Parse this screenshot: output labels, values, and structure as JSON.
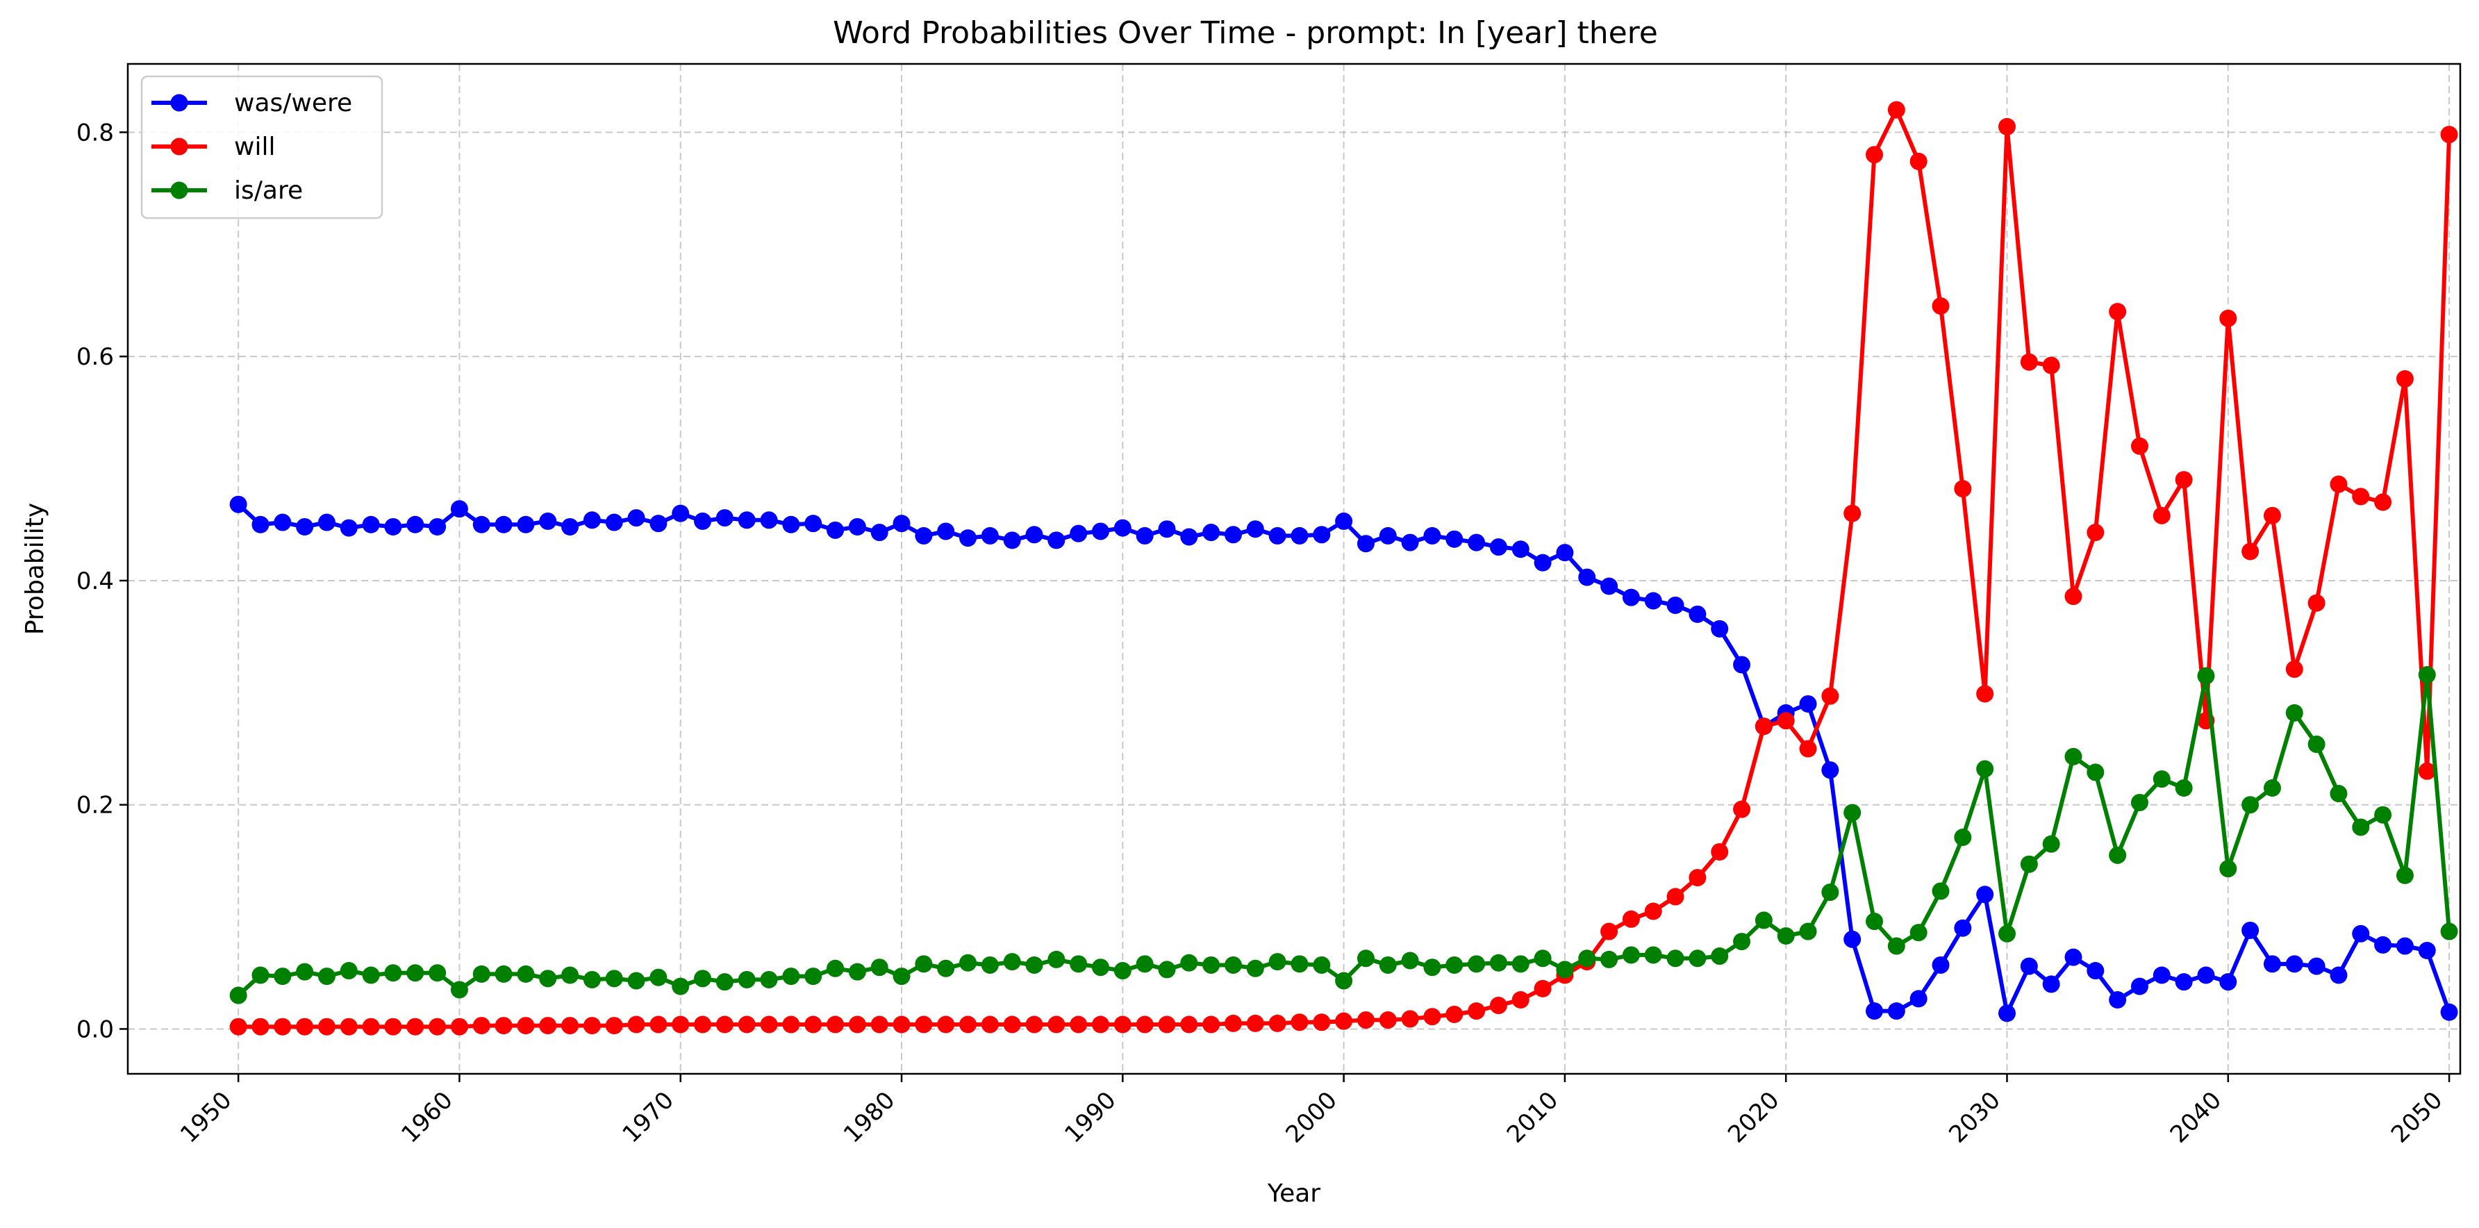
{
  "chart_data": {
    "type": "line",
    "title": "Word Probabilities Over Time - prompt: In [year] there",
    "xlabel": "Year",
    "ylabel": "Probability",
    "xlim": [
      1945,
      2050.5
    ],
    "ylim": [
      -0.04,
      0.861
    ],
    "xticks": [
      1950,
      1960,
      1970,
      1980,
      1990,
      2000,
      2010,
      2020,
      2030,
      2040,
      2050
    ],
    "yticks": [
      0.0,
      0.2,
      0.4,
      0.6,
      0.8
    ],
    "ytick_labels": [
      "0.0",
      "0.2",
      "0.4",
      "0.6",
      "0.8"
    ],
    "grid": true,
    "legend_position": "top-left",
    "x_start": 1950,
    "x_end": 2050,
    "series": [
      {
        "name": "was/were",
        "color": "#0000ff",
        "values": [
          0.468,
          0.45,
          0.452,
          0.448,
          0.452,
          0.447,
          0.45,
          0.448,
          0.45,
          0.448,
          0.464,
          0.45,
          0.45,
          0.45,
          0.453,
          0.448,
          0.454,
          0.452,
          0.456,
          0.451,
          0.46,
          0.453,
          0.456,
          0.454,
          0.454,
          0.45,
          0.451,
          0.445,
          0.448,
          0.443,
          0.451,
          0.44,
          0.444,
          0.438,
          0.44,
          0.436,
          0.441,
          0.436,
          0.442,
          0.444,
          0.447,
          0.44,
          0.446,
          0.439,
          0.443,
          0.441,
          0.446,
          0.44,
          0.44,
          0.441,
          0.453,
          0.433,
          0.44,
          0.434,
          0.44,
          0.437,
          0.434,
          0.43,
          0.428,
          0.416,
          0.425,
          0.403,
          0.395,
          0.385,
          0.382,
          0.378,
          0.37,
          0.357,
          0.325,
          0.27,
          0.282,
          0.29,
          0.231,
          0.08,
          0.016,
          0.016,
          0.027,
          0.057,
          0.09,
          0.12,
          0.014,
          0.056,
          0.04,
          0.064,
          0.052,
          0.026,
          0.038,
          0.048,
          0.042,
          0.048,
          0.042,
          0.088,
          0.058,
          0.058,
          0.056,
          0.048,
          0.085,
          0.075,
          0.074,
          0.07,
          0.015
        ]
      },
      {
        "name": "will",
        "color": "#ff0000",
        "values": [
          0.002,
          0.002,
          0.002,
          0.002,
          0.002,
          0.002,
          0.002,
          0.002,
          0.002,
          0.002,
          0.002,
          0.003,
          0.003,
          0.003,
          0.003,
          0.003,
          0.003,
          0.003,
          0.004,
          0.004,
          0.004,
          0.004,
          0.004,
          0.004,
          0.004,
          0.004,
          0.004,
          0.004,
          0.004,
          0.004,
          0.004,
          0.004,
          0.004,
          0.004,
          0.004,
          0.004,
          0.004,
          0.004,
          0.004,
          0.004,
          0.004,
          0.004,
          0.004,
          0.004,
          0.004,
          0.005,
          0.005,
          0.005,
          0.006,
          0.006,
          0.007,
          0.008,
          0.008,
          0.009,
          0.011,
          0.013,
          0.016,
          0.021,
          0.026,
          0.036,
          0.048,
          0.06,
          0.087,
          0.098,
          0.105,
          0.118,
          0.135,
          0.158,
          0.196,
          0.27,
          0.275,
          0.25,
          0.297,
          0.46,
          0.78,
          0.82,
          0.774,
          0.645,
          0.482,
          0.299,
          0.805,
          0.595,
          0.592,
          0.386,
          0.443,
          0.64,
          0.52,
          0.458,
          0.49,
          0.275,
          0.634,
          0.426,
          0.458,
          0.321,
          0.38,
          0.486,
          0.475,
          0.47,
          0.58,
          0.23,
          0.798
        ]
      },
      {
        "name": "is/are",
        "color": "#008000",
        "values": [
          0.03,
          0.048,
          0.047,
          0.051,
          0.047,
          0.052,
          0.048,
          0.05,
          0.05,
          0.05,
          0.035,
          0.049,
          0.049,
          0.049,
          0.045,
          0.048,
          0.044,
          0.045,
          0.043,
          0.046,
          0.038,
          0.045,
          0.042,
          0.044,
          0.044,
          0.047,
          0.047,
          0.054,
          0.051,
          0.055,
          0.047,
          0.058,
          0.054,
          0.059,
          0.057,
          0.06,
          0.057,
          0.062,
          0.058,
          0.055,
          0.052,
          0.058,
          0.053,
          0.059,
          0.057,
          0.057,
          0.054,
          0.06,
          0.058,
          0.057,
          0.043,
          0.063,
          0.057,
          0.061,
          0.055,
          0.057,
          0.058,
          0.059,
          0.058,
          0.063,
          0.053,
          0.063,
          0.062,
          0.066,
          0.066,
          0.063,
          0.063,
          0.065,
          0.078,
          0.097,
          0.083,
          0.087,
          0.122,
          0.193,
          0.096,
          0.074,
          0.086,
          0.123,
          0.171,
          0.232,
          0.085,
          0.147,
          0.165,
          0.243,
          0.229,
          0.155,
          0.202,
          0.223,
          0.215,
          0.315,
          0.143,
          0.2,
          0.215,
          0.282,
          0.254,
          0.21,
          0.18,
          0.191,
          0.137,
          0.316,
          0.087
        ]
      }
    ]
  }
}
